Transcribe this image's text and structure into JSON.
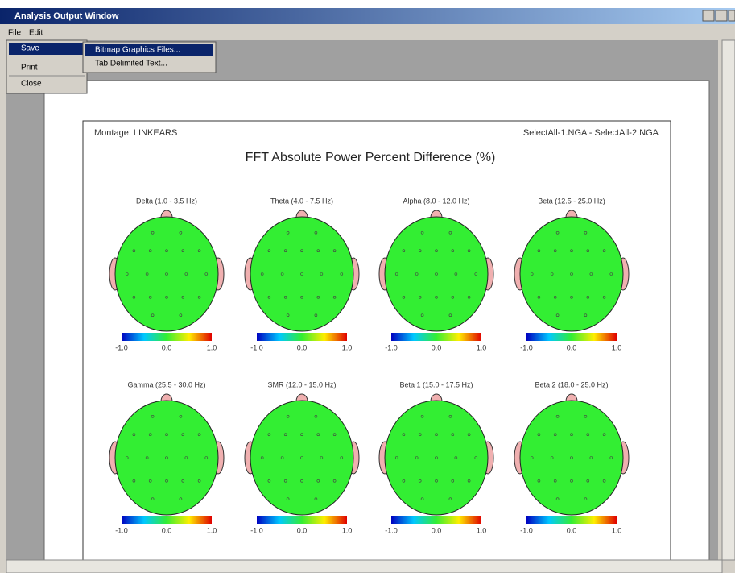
{
  "window": {
    "title": "Analysis Output Window",
    "menu": [
      "File",
      "Edit"
    ],
    "file_menu": [
      "Save",
      "Print",
      "Close"
    ],
    "save_submenu": [
      "Bitmap Graphics Files...",
      "Tab Delimited Text..."
    ]
  },
  "report": {
    "montage": "Montage:  LINKEARS",
    "files": "SelectAll-1.NGA - SelectAll-2.NGA",
    "title": "FFT Absolute Power Percent Difference  (%)",
    "maps": [
      "Delta (1.0 - 3.5 Hz)",
      "Theta (4.0 - 7.5 Hz)",
      "Alpha (8.0 - 12.0 Hz)",
      "Beta (12.5 - 25.0 Hz)",
      "Gamma (25.5 - 30.0 Hz)",
      "SMR (12.0 - 15.0 Hz)",
      "Beta 1 (15.0 - 17.5 Hz)",
      "Beta 2 (18.0 - 25.0 Hz)"
    ],
    "colorbar_ticks": [
      "-1.0",
      "0.0",
      "1.0"
    ]
  }
}
